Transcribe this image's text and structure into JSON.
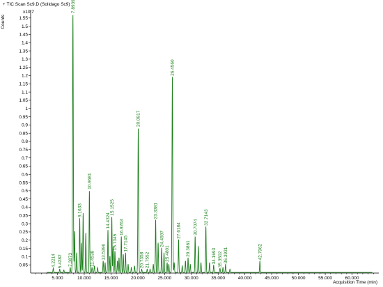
{
  "header": {
    "marker": "+",
    "title": "TIC Scan Sc9.D (Solidago Sc9)"
  },
  "chart_data": {
    "type": "line",
    "ylabel": "Counts",
    "y_multiplier": "x10 7",
    "xlabel": "Acquisition Time (min)",
    "xlim": [
      0,
      65
    ],
    "ylim": [
      0,
      1.6
    ],
    "x_ticks": [
      5,
      10,
      15,
      20,
      25,
      30,
      35,
      40,
      45,
      50,
      55,
      60
    ],
    "x_tick_labels": [
      "5.000",
      "10.000",
      "15.000",
      "20.000",
      "25.000",
      "30.000",
      "35.000",
      "40.000",
      "45.000",
      "50.000",
      "55.000",
      "60.000"
    ],
    "y_ticks": [
      0.05,
      0.1,
      0.15,
      0.2,
      0.25,
      0.3,
      0.35,
      0.4,
      0.45,
      0.5,
      0.55,
      0.6,
      0.65,
      0.7,
      0.75,
      0.8,
      0.85,
      0.9,
      0.95,
      1,
      1.05,
      1.1,
      1.15,
      1.2,
      1.25,
      1.3,
      1.35,
      1.4,
      1.45,
      1.5,
      1.55
    ],
    "y_tick_labels": [
      "0.05",
      "0.1",
      "0.15",
      "0.2",
      "0.25",
      "0.3",
      "0.35",
      "0.4",
      "0.45",
      "0.5",
      "0.55",
      "0.6",
      "0.65",
      "0.7",
      "0.75",
      "0.8",
      "0.85",
      "0.9",
      "0.95",
      "1",
      "1.05",
      "1.1",
      "1.15",
      "1.2",
      "1.25",
      "1.3",
      "1.35",
      "1.4",
      "1.45",
      "1.5",
      "1.55"
    ],
    "labeled_peaks": [
      {
        "x": 4.2214,
        "y": 0.025,
        "label": "4.2214"
      },
      {
        "x": 5.4282,
        "y": 0.02,
        "label": "5.4282"
      },
      {
        "x": 7.3873,
        "y": 0.03,
        "label": "7.3873"
      },
      {
        "x": 7.8939,
        "y": 1.57,
        "label": "7.8939"
      },
      {
        "x": 9.1633,
        "y": 0.33,
        "label": "9.1633"
      },
      {
        "x": 10.9681,
        "y": 0.5,
        "label": "10.9681"
      },
      {
        "x": 11.4538,
        "y": 0.03,
        "label": "11.4538"
      },
      {
        "x": 13.5396,
        "y": 0.07,
        "label": "13.5396"
      },
      {
        "x": 14.4324,
        "y": 0.26,
        "label": "14.4324"
      },
      {
        "x": 15.1525,
        "y": 0.34,
        "label": "15.1525"
      },
      {
        "x": 15.7345,
        "y": 0.13,
        "label": "15.7345"
      },
      {
        "x": 16.9263,
        "y": 0.22,
        "label": "16.9263"
      },
      {
        "x": 17.7145,
        "y": 0.12,
        "label": "17.7145"
      },
      {
        "x": 20.0917,
        "y": 0.88,
        "label": "20.0917"
      },
      {
        "x": 20.7358,
        "y": 0.02,
        "label": "20.7358"
      },
      {
        "x": 21.7552,
        "y": 0.02,
        "label": "21.7552"
      },
      {
        "x": 23.3381,
        "y": 0.32,
        "label": "23.3381"
      },
      {
        "x": 24.4597,
        "y": 0.15,
        "label": "24.4597"
      },
      {
        "x": 25.4801,
        "y": 0.06,
        "label": "25.4801"
      },
      {
        "x": 26.456,
        "y": 1.19,
        "label": "26.4560"
      },
      {
        "x": 27.6184,
        "y": 0.2,
        "label": "27.6184"
      },
      {
        "x": 29.3861,
        "y": 0.09,
        "label": "29.3861"
      },
      {
        "x": 30.7074,
        "y": 0.22,
        "label": "30.7074"
      },
      {
        "x": 32.7143,
        "y": 0.28,
        "label": "32.7143"
      },
      {
        "x": 34.1693,
        "y": 0.045,
        "label": "34.1693"
      },
      {
        "x": 35.3502,
        "y": 0.025,
        "label": "35.3502"
      },
      {
        "x": 36.3931,
        "y": 0.05,
        "label": "36.3931"
      },
      {
        "x": 42.7962,
        "y": 0.07,
        "label": "42.7962"
      }
    ],
    "minor_peaks": [
      {
        "x": 6.2,
        "y": 0.015
      },
      {
        "x": 8.2,
        "y": 0.25
      },
      {
        "x": 8.6,
        "y": 0.12
      },
      {
        "x": 9.5,
        "y": 0.18
      },
      {
        "x": 9.8,
        "y": 0.36
      },
      {
        "x": 10.3,
        "y": 0.24
      },
      {
        "x": 11.9,
        "y": 0.04
      },
      {
        "x": 12.5,
        "y": 0.03
      },
      {
        "x": 13.9,
        "y": 0.06
      },
      {
        "x": 14.8,
        "y": 0.1
      },
      {
        "x": 15.4,
        "y": 0.16
      },
      {
        "x": 16.2,
        "y": 0.07
      },
      {
        "x": 16.5,
        "y": 0.09
      },
      {
        "x": 17.3,
        "y": 0.11
      },
      {
        "x": 18.2,
        "y": 0.05
      },
      {
        "x": 18.8,
        "y": 0.03
      },
      {
        "x": 19.4,
        "y": 0.04
      },
      {
        "x": 22.3,
        "y": 0.02
      },
      {
        "x": 22.9,
        "y": 0.05
      },
      {
        "x": 23.8,
        "y": 0.18
      },
      {
        "x": 24.9,
        "y": 0.12
      },
      {
        "x": 25.8,
        "y": 0.05
      },
      {
        "x": 26.8,
        "y": 0.06
      },
      {
        "x": 28.3,
        "y": 0.04
      },
      {
        "x": 28.9,
        "y": 0.07
      },
      {
        "x": 29.8,
        "y": 0.05
      },
      {
        "x": 31.3,
        "y": 0.16
      },
      {
        "x": 31.8,
        "y": 0.06
      },
      {
        "x": 33.4,
        "y": 0.06
      },
      {
        "x": 35.9,
        "y": 0.03
      },
      {
        "x": 37.2,
        "y": 0.02
      }
    ],
    "colors": {
      "trace": "#1a7f1a",
      "label": "#1a7f1a",
      "axis": "#000000"
    }
  }
}
